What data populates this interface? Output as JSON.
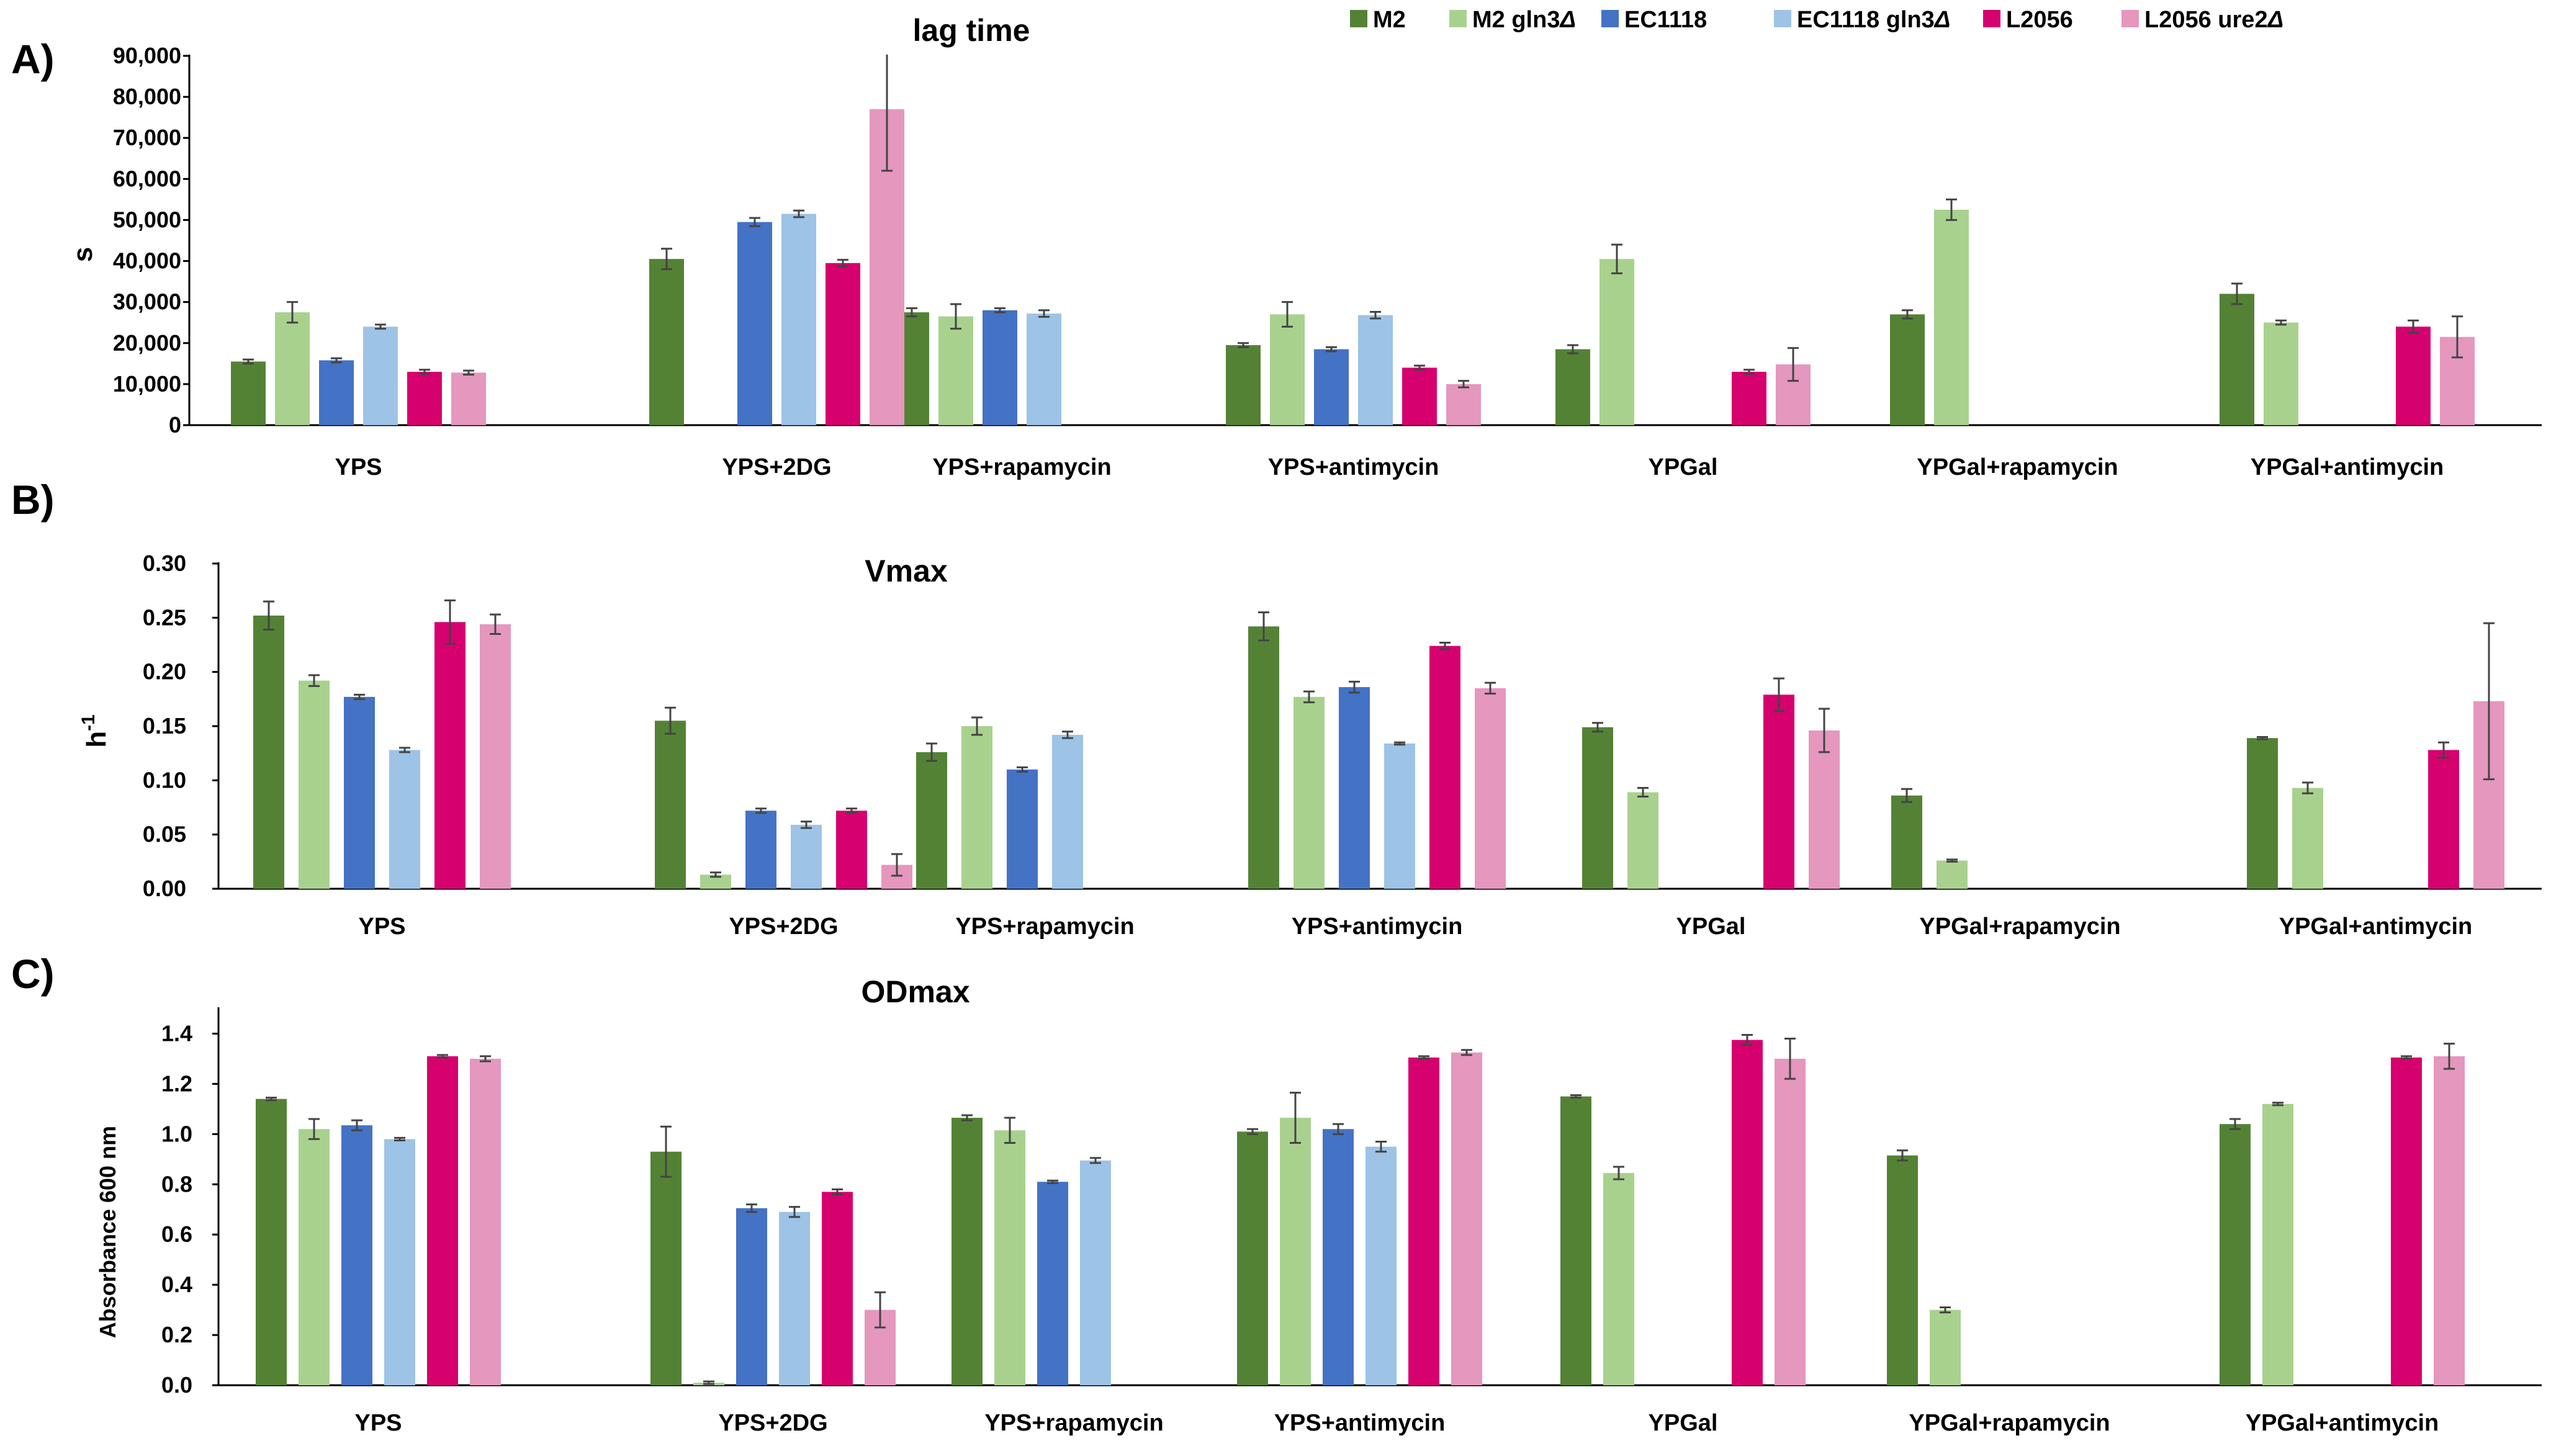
{
  "legend": [
    {
      "name": "M2",
      "display": "M2",
      "italic": "",
      "color": "#548235"
    },
    {
      "name": "M2 gln3Δ",
      "display": "M2 gln3",
      "italic": "Δ",
      "color": "#A9D18E"
    },
    {
      "name": "EC1118",
      "display": "EC1118",
      "italic": "",
      "color": "#4472C4"
    },
    {
      "name": "EC1118 gln3Δ",
      "display": "EC1118 gln3",
      "italic": "Δ",
      "color": "#9DC3E6"
    },
    {
      "name": "L2056",
      "display": "L2056",
      "italic": "",
      "color": "#D6006E"
    },
    {
      "name": "L2056 ure2Δ",
      "display": "L2056 ure2",
      "italic": "Δ",
      "color": "#E597BE"
    }
  ],
  "panels": [
    {
      "letter": "A)"
    },
    {
      "letter": "B)"
    },
    {
      "letter": "C)"
    }
  ],
  "chart_data": [
    {
      "type": "bar",
      "title": "lag time",
      "ylabel": "s",
      "ylabel_sup": "",
      "ylim": [
        0,
        90000
      ],
      "yticks": [
        0,
        10000,
        20000,
        30000,
        40000,
        50000,
        60000,
        70000,
        80000,
        90000
      ],
      "ytick_labels": [
        "0",
        "10,000",
        "20,000",
        "30,000",
        "40,000",
        "50,000",
        "60,000",
        "70,000",
        "80,000",
        "90,000"
      ],
      "categories": [
        "YPS",
        "YPS+2DG",
        "YPS+rapamycin",
        "YPS+antimycin",
        "YPGal",
        "YPGal+rapamycin",
        "YPGal+antimycin"
      ],
      "series": [
        {
          "name": "M2",
          "values": [
            15500,
            40500,
            27500,
            19500,
            18500,
            27000,
            32000
          ],
          "errors": [
            500,
            2500,
            1000,
            500,
            1000,
            1000,
            2500
          ]
        },
        {
          "name": "M2 gln3Δ",
          "values": [
            27500,
            null,
            26500,
            27000,
            40500,
            52500,
            25000
          ],
          "errors": [
            2500,
            null,
            3000,
            3000,
            3500,
            2500,
            500
          ]
        },
        {
          "name": "EC1118",
          "values": [
            15800,
            49500,
            28000,
            18500,
            null,
            null,
            null
          ],
          "errors": [
            500,
            1000,
            500,
            500,
            null,
            null,
            null
          ]
        },
        {
          "name": "EC1118 gln3Δ",
          "values": [
            24000,
            51500,
            27200,
            26800,
            null,
            null,
            null
          ],
          "errors": [
            500,
            800,
            800,
            800,
            null,
            null,
            null
          ]
        },
        {
          "name": "L2056",
          "values": [
            13000,
            39500,
            null,
            14000,
            13000,
            null,
            24000
          ],
          "errors": [
            500,
            800,
            null,
            500,
            500,
            null,
            1500
          ]
        },
        {
          "name": "L2056 ure2Δ",
          "values": [
            12800,
            77000,
            null,
            10000,
            14800,
            null,
            21500
          ],
          "errors": [
            500,
            15000,
            null,
            800,
            4000,
            null,
            5000
          ]
        }
      ]
    },
    {
      "type": "bar",
      "title": "Vmax",
      "ylabel": "h",
      "ylabel_sup": "-1",
      "ylim": [
        0,
        0.3
      ],
      "yticks": [
        0,
        0.05,
        0.1,
        0.15,
        0.2,
        0.25,
        0.3
      ],
      "ytick_labels": [
        "0.00",
        "0.05",
        "0.10",
        "0.15",
        "0.20",
        "0.25",
        "0.30"
      ],
      "categories": [
        "YPS",
        "YPS+2DG",
        "YPS+rapamycin",
        "YPS+antimycin",
        "YPGal",
        "YPGal+rapamycin",
        "YPGal+antimycin"
      ],
      "series": [
        {
          "name": "M2",
          "values": [
            0.252,
            0.155,
            0.126,
            0.242,
            0.149,
            0.086,
            0.139
          ],
          "errors": [
            0.013,
            0.012,
            0.008,
            0.013,
            0.004,
            0.006,
            0.001
          ]
        },
        {
          "name": "M2 gln3Δ",
          "values": [
            0.192,
            0.013,
            0.15,
            0.177,
            0.089,
            0.026,
            0.093
          ],
          "errors": [
            0.005,
            0.002,
            0.008,
            0.005,
            0.004,
            0.001,
            0.005
          ]
        },
        {
          "name": "EC1118",
          "values": [
            0.177,
            0.072,
            0.11,
            0.186,
            null,
            null,
            null
          ],
          "errors": [
            0.002,
            0.002,
            0.002,
            0.005,
            null,
            null,
            null
          ]
        },
        {
          "name": "EC1118 gln3Δ",
          "values": [
            0.128,
            0.059,
            0.142,
            0.134,
            null,
            null,
            null
          ],
          "errors": [
            0.002,
            0.003,
            0.003,
            0.001,
            null,
            null,
            null
          ]
        },
        {
          "name": "L2056",
          "values": [
            0.246,
            0.072,
            null,
            0.224,
            0.179,
            null,
            0.128
          ],
          "errors": [
            0.02,
            0.002,
            null,
            0.003,
            0.015,
            null,
            0.007
          ]
        },
        {
          "name": "L2056 ure2Δ",
          "values": [
            0.244,
            0.022,
            null,
            0.185,
            0.146,
            null,
            0.173
          ],
          "errors": [
            0.009,
            0.01,
            null,
            0.005,
            0.02,
            null,
            0.072
          ]
        }
      ]
    },
    {
      "type": "bar",
      "title": "ODmax",
      "ylabel": "Absorbance 600 nm",
      "ylabel_sup": "",
      "ylim": [
        0,
        1.5
      ],
      "yticks": [
        0,
        0.2,
        0.4,
        0.6,
        0.8,
        1.0,
        1.2,
        1.4
      ],
      "ytick_labels": [
        "0.0",
        "0.2",
        "0.4",
        "0.6",
        "0.8",
        "1.0",
        "1.2",
        "1.4"
      ],
      "categories": [
        "YPS",
        "YPS+2DG",
        "YPS+rapamycin",
        "YPS+antimycin",
        "YPGal",
        "YPGal+rapamycin",
        "YPGal+antimycin"
      ],
      "series": [
        {
          "name": "M2",
          "values": [
            1.14,
            0.93,
            1.065,
            1.01,
            1.15,
            0.915,
            1.04
          ],
          "errors": [
            0.005,
            0.1,
            0.01,
            0.01,
            0.005,
            0.02,
            0.02
          ]
        },
        {
          "name": "M2 gln3Δ",
          "values": [
            1.02,
            0.01,
            1.015,
            1.065,
            0.845,
            0.3,
            1.12
          ],
          "errors": [
            0.04,
            0.005,
            0.05,
            0.1,
            0.025,
            0.01,
            0.005
          ]
        },
        {
          "name": "EC1118",
          "values": [
            1.035,
            0.705,
            0.81,
            1.02,
            null,
            null,
            null
          ],
          "errors": [
            0.02,
            0.015,
            0.005,
            0.02,
            null,
            null,
            null
          ]
        },
        {
          "name": "EC1118 gln3Δ",
          "values": [
            0.98,
            0.69,
            0.895,
            0.95,
            null,
            null,
            null
          ],
          "errors": [
            0.005,
            0.02,
            0.01,
            0.02,
            null,
            null,
            null
          ]
        },
        {
          "name": "L2056",
          "values": [
            1.31,
            0.77,
            null,
            1.305,
            1.375,
            null,
            1.305
          ],
          "errors": [
            0.005,
            0.01,
            null,
            0.005,
            0.02,
            null,
            0.005
          ]
        },
        {
          "name": "L2056 ure2Δ",
          "values": [
            1.3,
            0.3,
            null,
            1.325,
            1.3,
            null,
            1.31
          ],
          "errors": [
            0.01,
            0.07,
            null,
            0.01,
            0.08,
            null,
            0.05
          ]
        }
      ]
    }
  ]
}
